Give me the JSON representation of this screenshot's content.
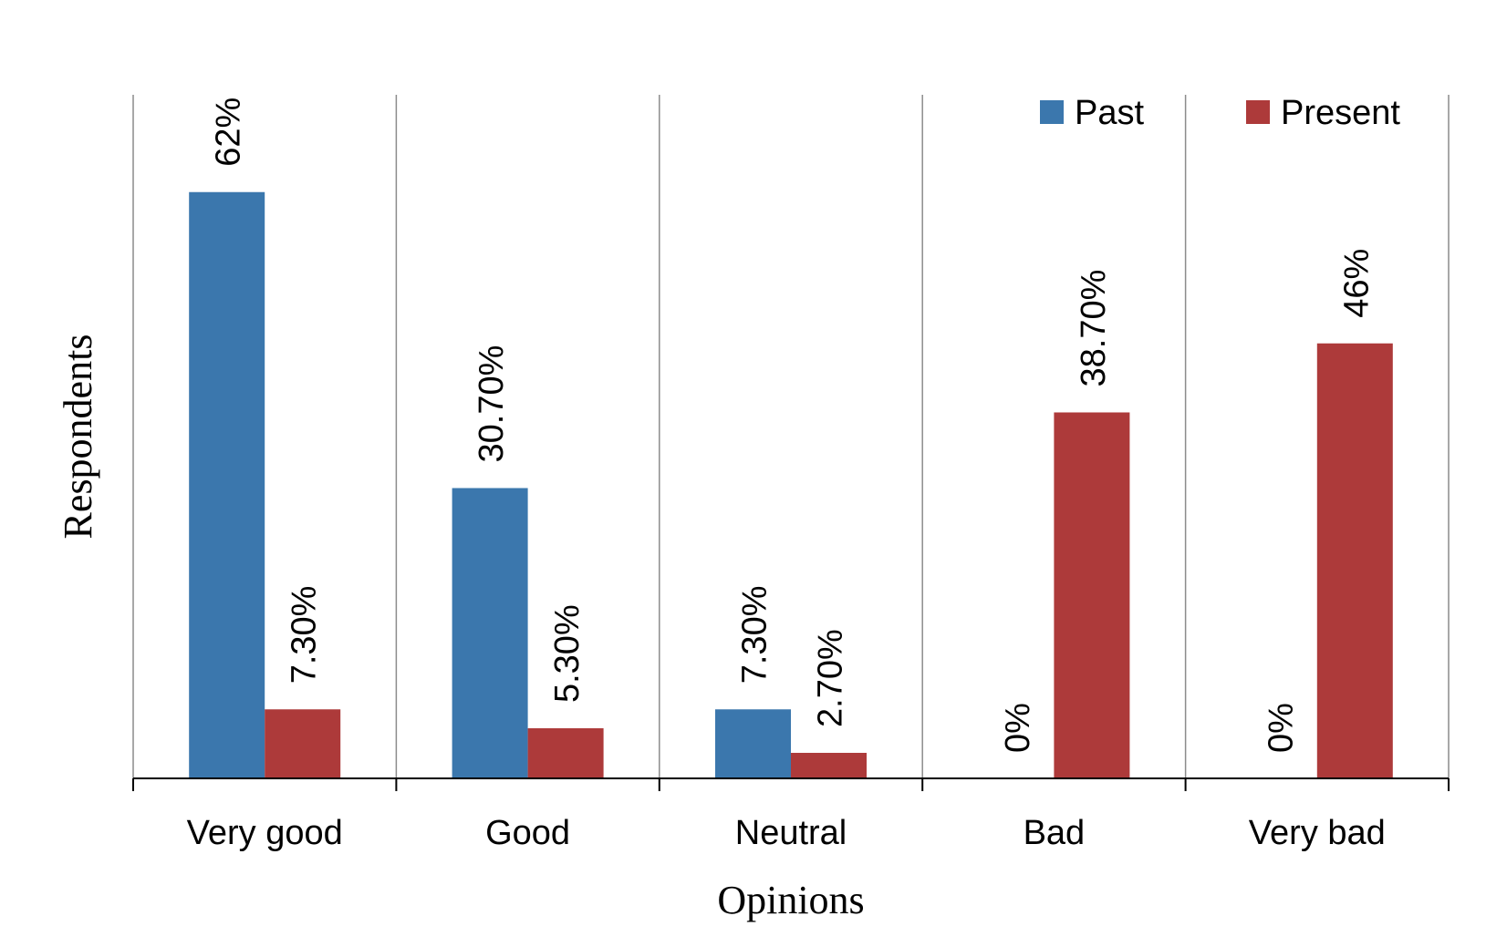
{
  "chart_data": {
    "type": "bar",
    "title": "",
    "xlabel": "Opinions",
    "ylabel": "Respondents",
    "categories": [
      "Very good",
      "Good",
      "Neutral",
      "Bad",
      "Very bad"
    ],
    "series": [
      {
        "name": "Past",
        "color": "#3b77ad",
        "values": [
          62,
          30.7,
          7.3,
          0,
          0
        ],
        "labels": [
          "62%",
          "30.70%",
          "7.30%",
          "0%",
          "0%"
        ]
      },
      {
        "name": "Present",
        "color": "#ad3a3a",
        "values": [
          7.3,
          5.3,
          2.7,
          38.7,
          46
        ],
        "labels": [
          "7.30%",
          "5.30%",
          "2.70%",
          "38.70%",
          "46%"
        ]
      }
    ],
    "ylim": [
      0,
      64
    ],
    "grid": "vertical category separators",
    "legend": "top-right",
    "data_labels": "rotated vertical above bars"
  }
}
